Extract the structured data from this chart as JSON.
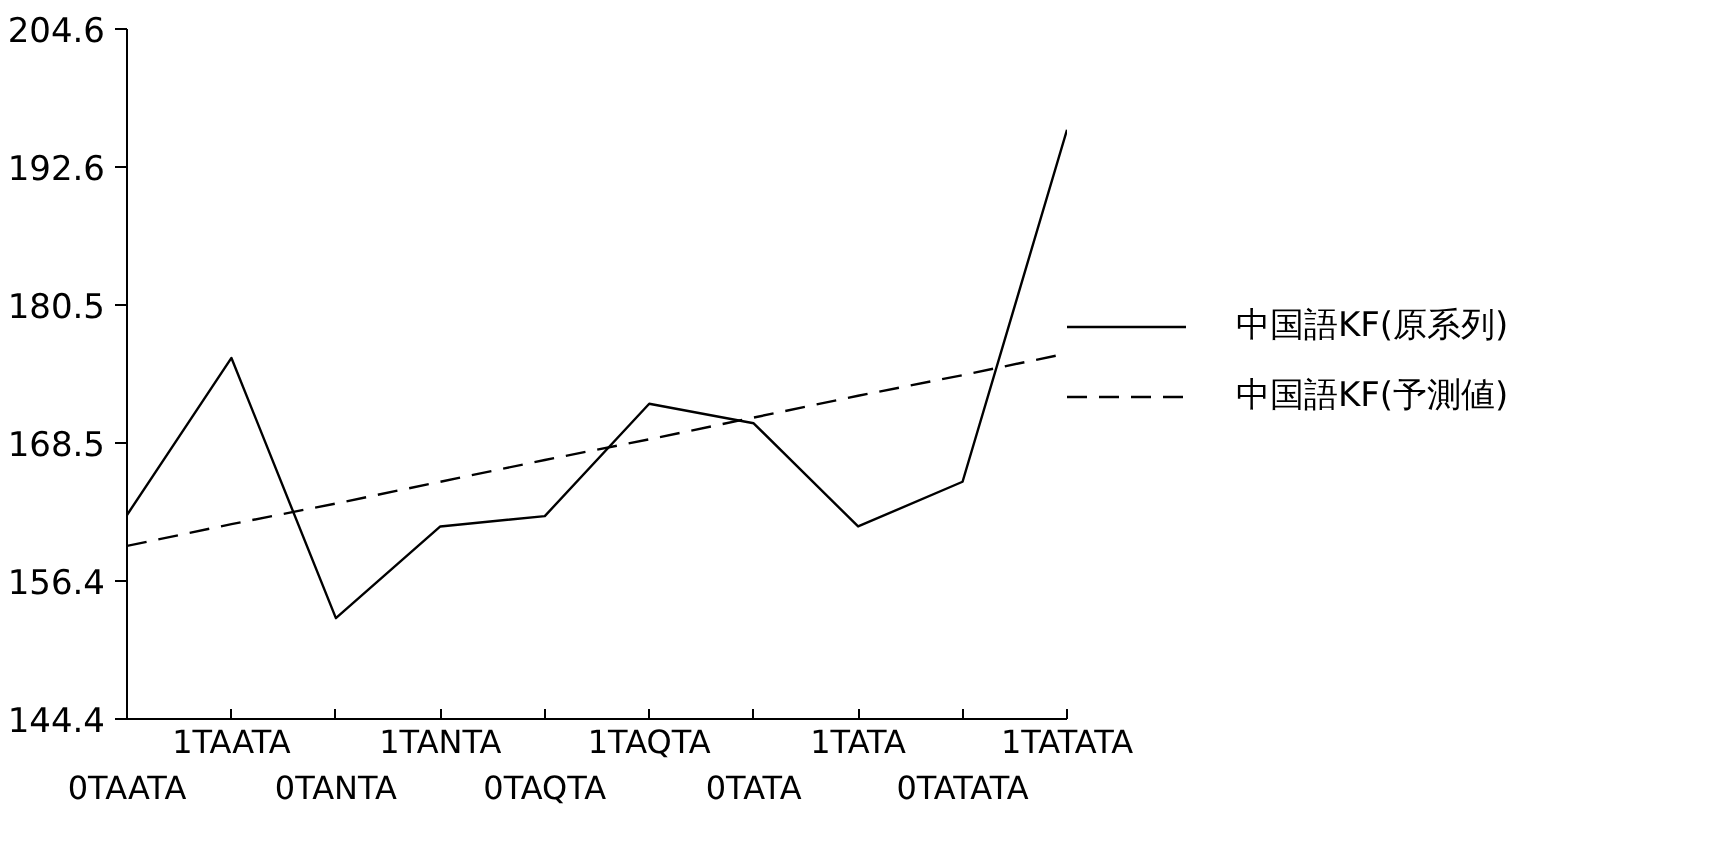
{
  "chart_data": {
    "type": "line",
    "categories": [
      "0TAATA",
      "1TAATA",
      "0TANTA",
      "1TANTA",
      "0TAQTA",
      "1TAQTA",
      "0TATA",
      "1TATA",
      "0TATATA",
      "1TATATA"
    ],
    "series": [
      {
        "name": "中国語KF(原系列)",
        "color": "#000000",
        "line_style": "solid",
        "values": [
          162.2,
          175.9,
          153.2,
          161.2,
          162.1,
          171.9,
          170.2,
          161.2,
          165.1,
          195.8
        ]
      },
      {
        "name": "中国語KF(予測値)",
        "color": "#000000",
        "line_style": "dashed",
        "values": [
          159.5,
          161.4,
          163.2,
          165.1,
          167.0,
          168.8,
          170.7,
          172.6,
          174.4,
          176.3
        ]
      }
    ],
    "ylim": [
      144.4,
      204.6
    ],
    "yticks": [
      144.4,
      156.4,
      168.5,
      180.5,
      192.6,
      204.6
    ],
    "grid": false,
    "legend": "right",
    "marker": "none"
  }
}
